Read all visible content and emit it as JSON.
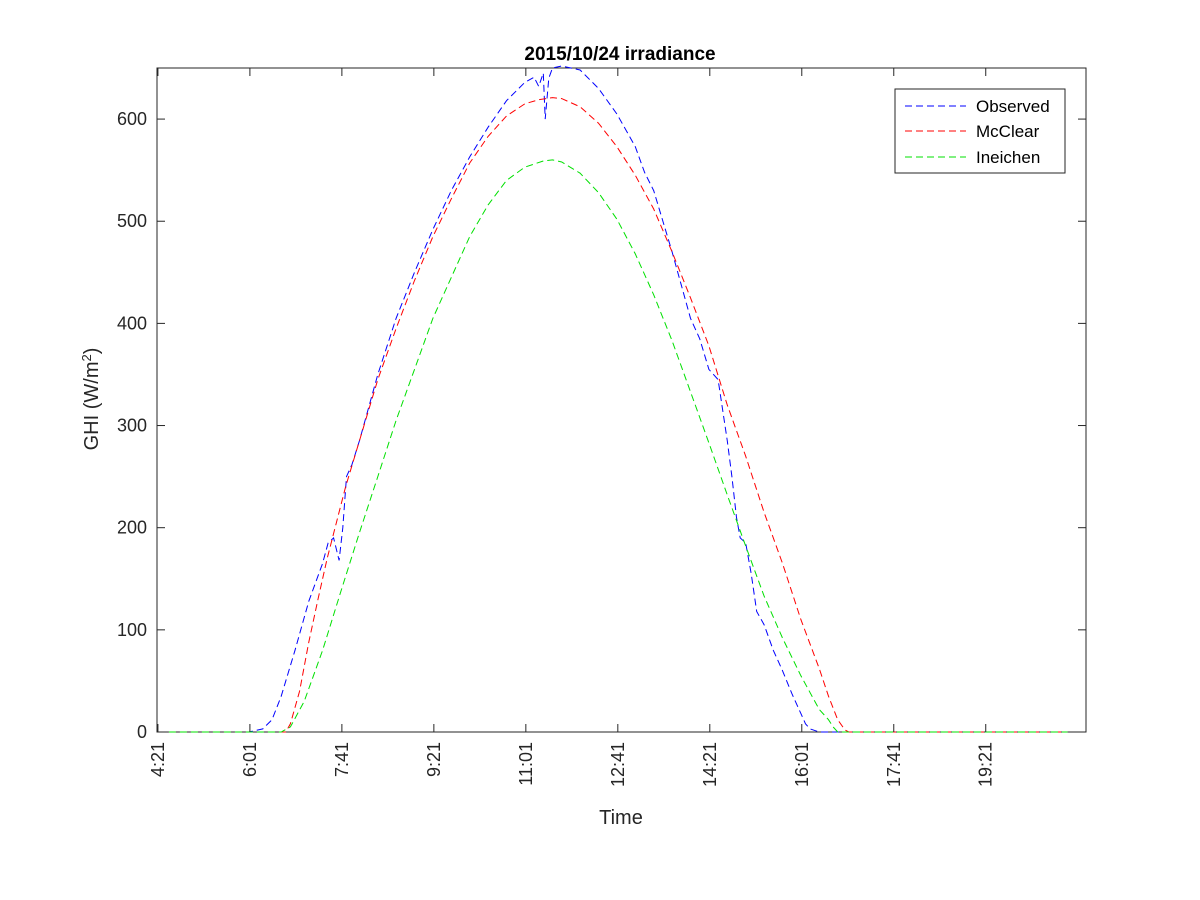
{
  "chart_data": {
    "type": "line",
    "title": "2015/10/24 irradiance",
    "xlabel": "Time",
    "ylabel_prefix": "GHI (W/m",
    "ylabel_sup": "2",
    "ylabel_suffix": ")",
    "xlim_minutes": [
      260,
      1270
    ],
    "ylim": [
      0,
      650
    ],
    "x_unit": "minutes of day",
    "x_ticks": [
      {
        "label": "4:21",
        "minutes": 261
      },
      {
        "label": "6:01",
        "minutes": 361
      },
      {
        "label": "7:41",
        "minutes": 461
      },
      {
        "label": "9:21",
        "minutes": 561
      },
      {
        "label": "11:01",
        "minutes": 661
      },
      {
        "label": "12:41",
        "minutes": 761
      },
      {
        "label": "14:21",
        "minutes": 861
      },
      {
        "label": "16:01",
        "minutes": 961
      },
      {
        "label": "17:41",
        "minutes": 1061
      },
      {
        "label": "19:21",
        "minutes": 1161
      }
    ],
    "y_ticks": [
      0,
      100,
      200,
      300,
      400,
      500,
      600
    ],
    "grid": false,
    "legend_position": "top-right",
    "series": [
      {
        "name": "Observed",
        "color": "#0000ff",
        "dash": "dashed",
        "points": [
          [
            261,
            0
          ],
          [
            360,
            0
          ],
          [
            375,
            3
          ],
          [
            385,
            12
          ],
          [
            395,
            35
          ],
          [
            410,
            80
          ],
          [
            425,
            128
          ],
          [
            440,
            165
          ],
          [
            446,
            185
          ],
          [
            452,
            190
          ],
          [
            458,
            168
          ],
          [
            462,
            200
          ],
          [
            466,
            250
          ],
          [
            472,
            262
          ],
          [
            480,
            285
          ],
          [
            500,
            350
          ],
          [
            520,
            405
          ],
          [
            540,
            450
          ],
          [
            560,
            492
          ],
          [
            580,
            530
          ],
          [
            600,
            563
          ],
          [
            620,
            592
          ],
          [
            640,
            618
          ],
          [
            660,
            636
          ],
          [
            670,
            641
          ],
          [
            675,
            632
          ],
          [
            680,
            645
          ],
          [
            682,
            600
          ],
          [
            686,
            640
          ],
          [
            690,
            650
          ],
          [
            700,
            652
          ],
          [
            710,
            650
          ],
          [
            720,
            648
          ],
          [
            740,
            630
          ],
          [
            760,
            605
          ],
          [
            780,
            573
          ],
          [
            790,
            548
          ],
          [
            800,
            530
          ],
          [
            820,
            470
          ],
          [
            840,
            405
          ],
          [
            850,
            385
          ],
          [
            860,
            355
          ],
          [
            870,
            345
          ],
          [
            880,
            285
          ],
          [
            885,
            250
          ],
          [
            890,
            210
          ],
          [
            894,
            190
          ],
          [
            900,
            185
          ],
          [
            906,
            155
          ],
          [
            912,
            118
          ],
          [
            920,
            105
          ],
          [
            930,
            80
          ],
          [
            940,
            60
          ],
          [
            950,
            38
          ],
          [
            960,
            18
          ],
          [
            965,
            8
          ],
          [
            970,
            3
          ],
          [
            980,
            0
          ],
          [
            1250,
            0
          ]
        ]
      },
      {
        "name": "McClear",
        "color": "#ff0000",
        "dash": "dashed",
        "points": [
          [
            261,
            0
          ],
          [
            400,
            0
          ],
          [
            405,
            8
          ],
          [
            415,
            40
          ],
          [
            425,
            88
          ],
          [
            435,
            130
          ],
          [
            445,
            170
          ],
          [
            455,
            205
          ],
          [
            465,
            240
          ],
          [
            480,
            285
          ],
          [
            500,
            345
          ],
          [
            520,
            395
          ],
          [
            540,
            442
          ],
          [
            560,
            485
          ],
          [
            580,
            522
          ],
          [
            600,
            557
          ],
          [
            620,
            583
          ],
          [
            640,
            603
          ],
          [
            660,
            615
          ],
          [
            675,
            619
          ],
          [
            690,
            621
          ],
          [
            700,
            620
          ],
          [
            720,
            612
          ],
          [
            740,
            596
          ],
          [
            760,
            573
          ],
          [
            780,
            545
          ],
          [
            800,
            512
          ],
          [
            820,
            470
          ],
          [
            840,
            425
          ],
          [
            860,
            378
          ],
          [
            880,
            320
          ],
          [
            900,
            270
          ],
          [
            920,
            215
          ],
          [
            940,
            165
          ],
          [
            960,
            110
          ],
          [
            980,
            62
          ],
          [
            990,
            35
          ],
          [
            1000,
            12
          ],
          [
            1008,
            2
          ],
          [
            1012,
            0
          ],
          [
            1250,
            0
          ]
        ]
      },
      {
        "name": "Ineichen",
        "color": "#00e000",
        "dash": "dashed",
        "points": [
          [
            261,
            0
          ],
          [
            395,
            0
          ],
          [
            405,
            5
          ],
          [
            420,
            30
          ],
          [
            440,
            80
          ],
          [
            460,
            138
          ],
          [
            480,
            195
          ],
          [
            500,
            250
          ],
          [
            520,
            305
          ],
          [
            540,
            355
          ],
          [
            560,
            405
          ],
          [
            580,
            445
          ],
          [
            600,
            485
          ],
          [
            620,
            516
          ],
          [
            640,
            540
          ],
          [
            660,
            553
          ],
          [
            680,
            559
          ],
          [
            690,
            560
          ],
          [
            700,
            558
          ],
          [
            720,
            547
          ],
          [
            740,
            528
          ],
          [
            760,
            502
          ],
          [
            780,
            468
          ],
          [
            800,
            428
          ],
          [
            820,
            383
          ],
          [
            840,
            333
          ],
          [
            860,
            283
          ],
          [
            880,
            232
          ],
          [
            900,
            182
          ],
          [
            920,
            133
          ],
          [
            940,
            92
          ],
          [
            960,
            55
          ],
          [
            980,
            22
          ],
          [
            990,
            12
          ],
          [
            995,
            5
          ],
          [
            1000,
            0
          ],
          [
            1250,
            0
          ]
        ]
      }
    ]
  }
}
